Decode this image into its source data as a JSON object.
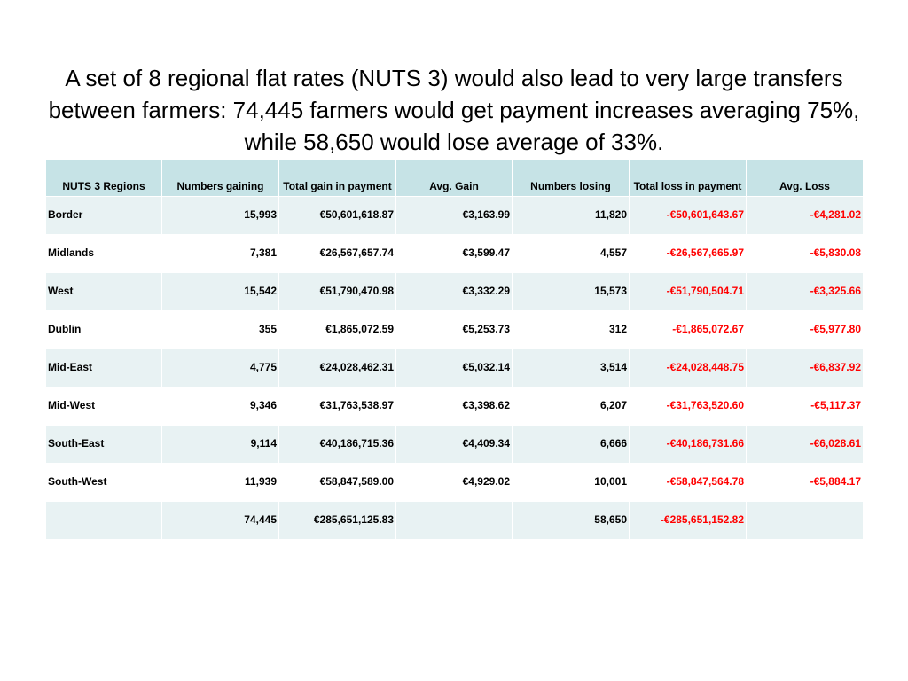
{
  "title": "A set of 8 regional flat rates (NUTS 3) would also lead to very large transfers between farmers: 74,445 farmers would get payment increases averaging 75%, while 58,650 would lose average of 33%.",
  "colors": {
    "header_bg": "#c6e3e6",
    "row_band": "#e8f2f3",
    "loss_text": "#ff0000"
  },
  "table": {
    "headers": {
      "region": "NUTS 3 Regions",
      "numbers_gaining": "Numbers gaining",
      "total_gain": "Total gain in payment",
      "avg_gain": "Avg. Gain",
      "numbers_losing": "Numbers losing",
      "total_loss": "Total loss in payment",
      "avg_loss": "Avg. Loss"
    },
    "rows": [
      {
        "region": "Border",
        "numbers_gaining": "15,993",
        "total_gain": "€50,601,618.87",
        "avg_gain": "€3,163.99",
        "numbers_losing": "11,820",
        "total_loss": "-€50,601,643.67",
        "avg_loss": "-€4,281.02"
      },
      {
        "region": "Midlands",
        "numbers_gaining": "7,381",
        "total_gain": "€26,567,657.74",
        "avg_gain": "€3,599.47",
        "numbers_losing": "4,557",
        "total_loss": "-€26,567,665.97",
        "avg_loss": "-€5,830.08"
      },
      {
        "region": "West",
        "numbers_gaining": "15,542",
        "total_gain": "€51,790,470.98",
        "avg_gain": "€3,332.29",
        "numbers_losing": "15,573",
        "total_loss": "-€51,790,504.71",
        "avg_loss": "-€3,325.66"
      },
      {
        "region": "Dublin",
        "numbers_gaining": "355",
        "total_gain": "€1,865,072.59",
        "avg_gain": "€5,253.73",
        "numbers_losing": "312",
        "total_loss": "-€1,865,072.67",
        "avg_loss": "-€5,977.80"
      },
      {
        "region": "Mid-East",
        "numbers_gaining": "4,775",
        "total_gain": "€24,028,462.31",
        "avg_gain": "€5,032.14",
        "numbers_losing": "3,514",
        "total_loss": "-€24,028,448.75",
        "avg_loss": "-€6,837.92"
      },
      {
        "region": "Mid-West",
        "numbers_gaining": "9,346",
        "total_gain": "€31,763,538.97",
        "avg_gain": "€3,398.62",
        "numbers_losing": "6,207",
        "total_loss": "-€31,763,520.60",
        "avg_loss": "-€5,117.37"
      },
      {
        "region": "South-East",
        "numbers_gaining": "9,114",
        "total_gain": "€40,186,715.36",
        "avg_gain": "€4,409.34",
        "numbers_losing": "6,666",
        "total_loss": "-€40,186,731.66",
        "avg_loss": "-€6,028.61"
      },
      {
        "region": "South-West",
        "numbers_gaining": "11,939",
        "total_gain": "€58,847,589.00",
        "avg_gain": "€4,929.02",
        "numbers_losing": "10,001",
        "total_loss": "-€58,847,564.78",
        "avg_loss": "-€5,884.17"
      }
    ],
    "totals": {
      "region": "",
      "numbers_gaining": "74,445",
      "total_gain": "€285,651,125.83",
      "avg_gain": "",
      "numbers_losing": "58,650",
      "total_loss": "-€285,651,152.82",
      "avg_loss": ""
    }
  }
}
